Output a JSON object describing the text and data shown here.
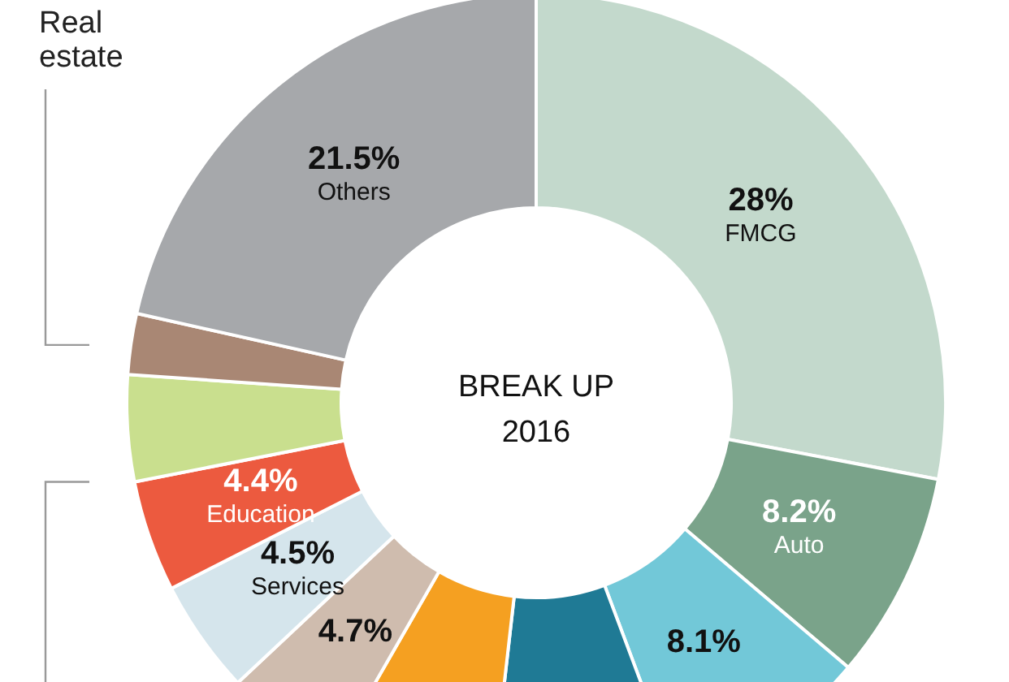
{
  "chart_data": {
    "type": "donut",
    "title": "BREAK UP",
    "subtitle": "2016",
    "categories": [
      "FMCG",
      "Auto",
      null,
      null,
      null,
      null,
      "Services",
      "Education",
      null,
      "Real estate",
      "Others"
    ],
    "values": [
      28,
      8.2,
      8.1,
      7.5,
      6.5,
      4.7,
      4.5,
      4.4,
      4.2,
      2.4,
      21.5
    ],
    "value_labels": [
      "28%",
      "8.2%",
      "8.1%",
      null,
      null,
      "4.7%",
      "4.5%",
      "4.4%",
      null,
      null,
      "21.5%"
    ],
    "colors": [
      "#c3d9cc",
      "#7aa38a",
      "#72c8d8",
      "#1f7a95",
      "#f5a021",
      "#cfbcae",
      "#d5e5ec",
      "#ec5a3f",
      "#c9df8e",
      "#a98774",
      "#a6a8ab"
    ]
  }
}
